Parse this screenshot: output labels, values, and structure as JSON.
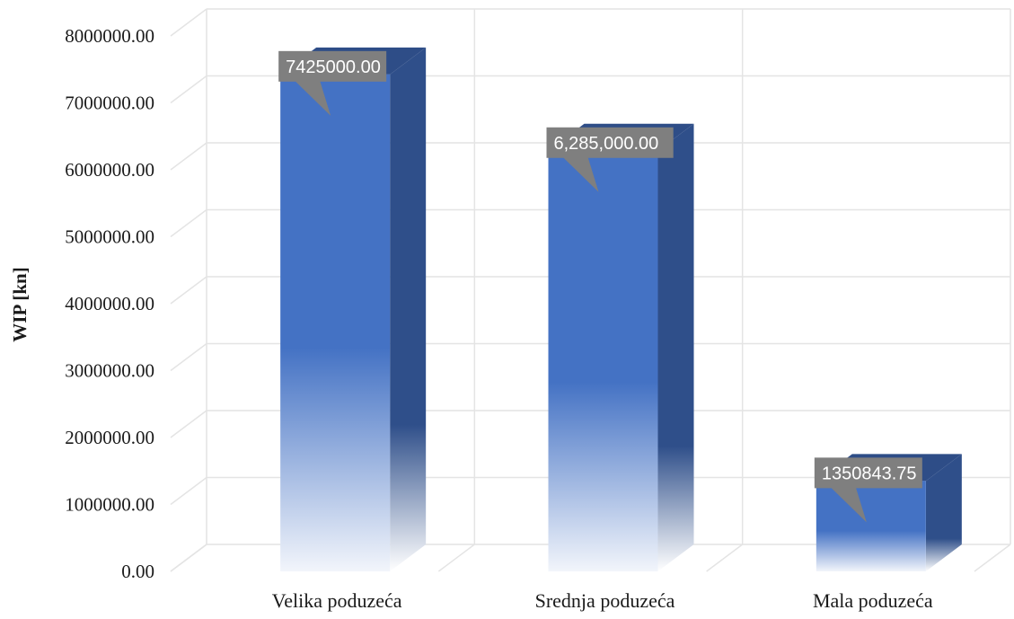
{
  "chart_data": {
    "type": "bar",
    "style": "3d-column",
    "categories": [
      "Velika poduzeća",
      "Srednja poduzeća",
      "Mala poduzeća"
    ],
    "series": [
      {
        "values": [
          7425000.0,
          6285000.0,
          1350843.75
        ],
        "data_labels": [
          "7425000.00",
          "6,285,000.00",
          "1350843.75"
        ]
      }
    ],
    "ylabel": "WIP [kn]",
    "xlabel": "",
    "title": "",
    "ylim": [
      0,
      8000000
    ],
    "yticks": [
      0,
      1000000,
      2000000,
      3000000,
      4000000,
      5000000,
      6000000,
      7000000,
      8000000
    ],
    "ytick_labels": [
      "0.00",
      "1000000.00",
      "2000000.00",
      "3000000.00",
      "4000000.00",
      "5000000.00",
      "6000000.00",
      "7000000.00",
      "8000000.00"
    ],
    "grid": true,
    "legend": "none",
    "colors": {
      "bar_front": "#4472c4",
      "bar_side": "#2f4f8a",
      "bar_top": "#2e4d87",
      "grid": "#e4e4e4",
      "data_label_bg": "#7f7f7f"
    }
  }
}
